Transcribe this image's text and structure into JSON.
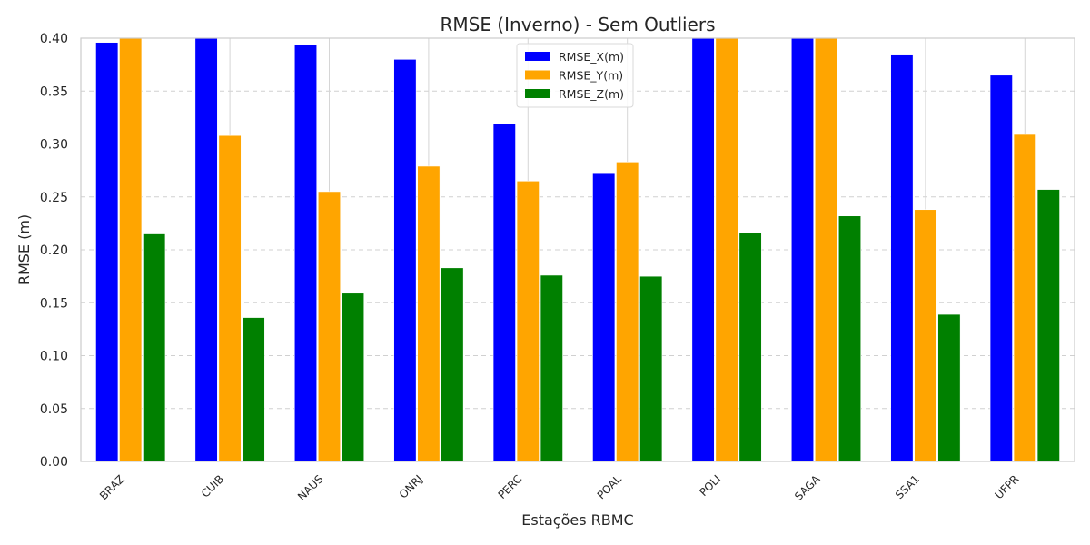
{
  "chart_data": {
    "type": "bar",
    "title": "RMSE (Inverno) - Sem Outliers",
    "xlabel": "Estações RBMC",
    "ylabel": "RMSE (m)",
    "ylim": [
      0,
      0.4
    ],
    "yticks": [
      "0.00",
      "0.05",
      "0.10",
      "0.15",
      "0.20",
      "0.25",
      "0.30",
      "0.35",
      "0.40"
    ],
    "categories": [
      "BRAZ",
      "CUIB",
      "NAUS",
      "ONRJ",
      "PERC",
      "POAL",
      "POLI",
      "SAGA",
      "SSA1",
      "UFPR"
    ],
    "series": [
      {
        "name": "RMSE_X(m)",
        "color": "#0000ff",
        "values": [
          0.396,
          0.4,
          0.394,
          0.38,
          0.319,
          0.272,
          0.4,
          0.4,
          0.384,
          0.365
        ]
      },
      {
        "name": "RMSE_Y(m)",
        "color": "#ffa500",
        "values": [
          0.4,
          0.308,
          0.255,
          0.279,
          0.265,
          0.283,
          0.4,
          0.4,
          0.238,
          0.309
        ]
      },
      {
        "name": "RMSE_Z(m)",
        "color": "#008000",
        "values": [
          0.215,
          0.136,
          0.159,
          0.183,
          0.176,
          0.175,
          0.216,
          0.232,
          0.139,
          0.257
        ]
      }
    ],
    "grid": true,
    "grid_style": "dashed horizontal, solid vertical",
    "legend_position": "top-center"
  }
}
